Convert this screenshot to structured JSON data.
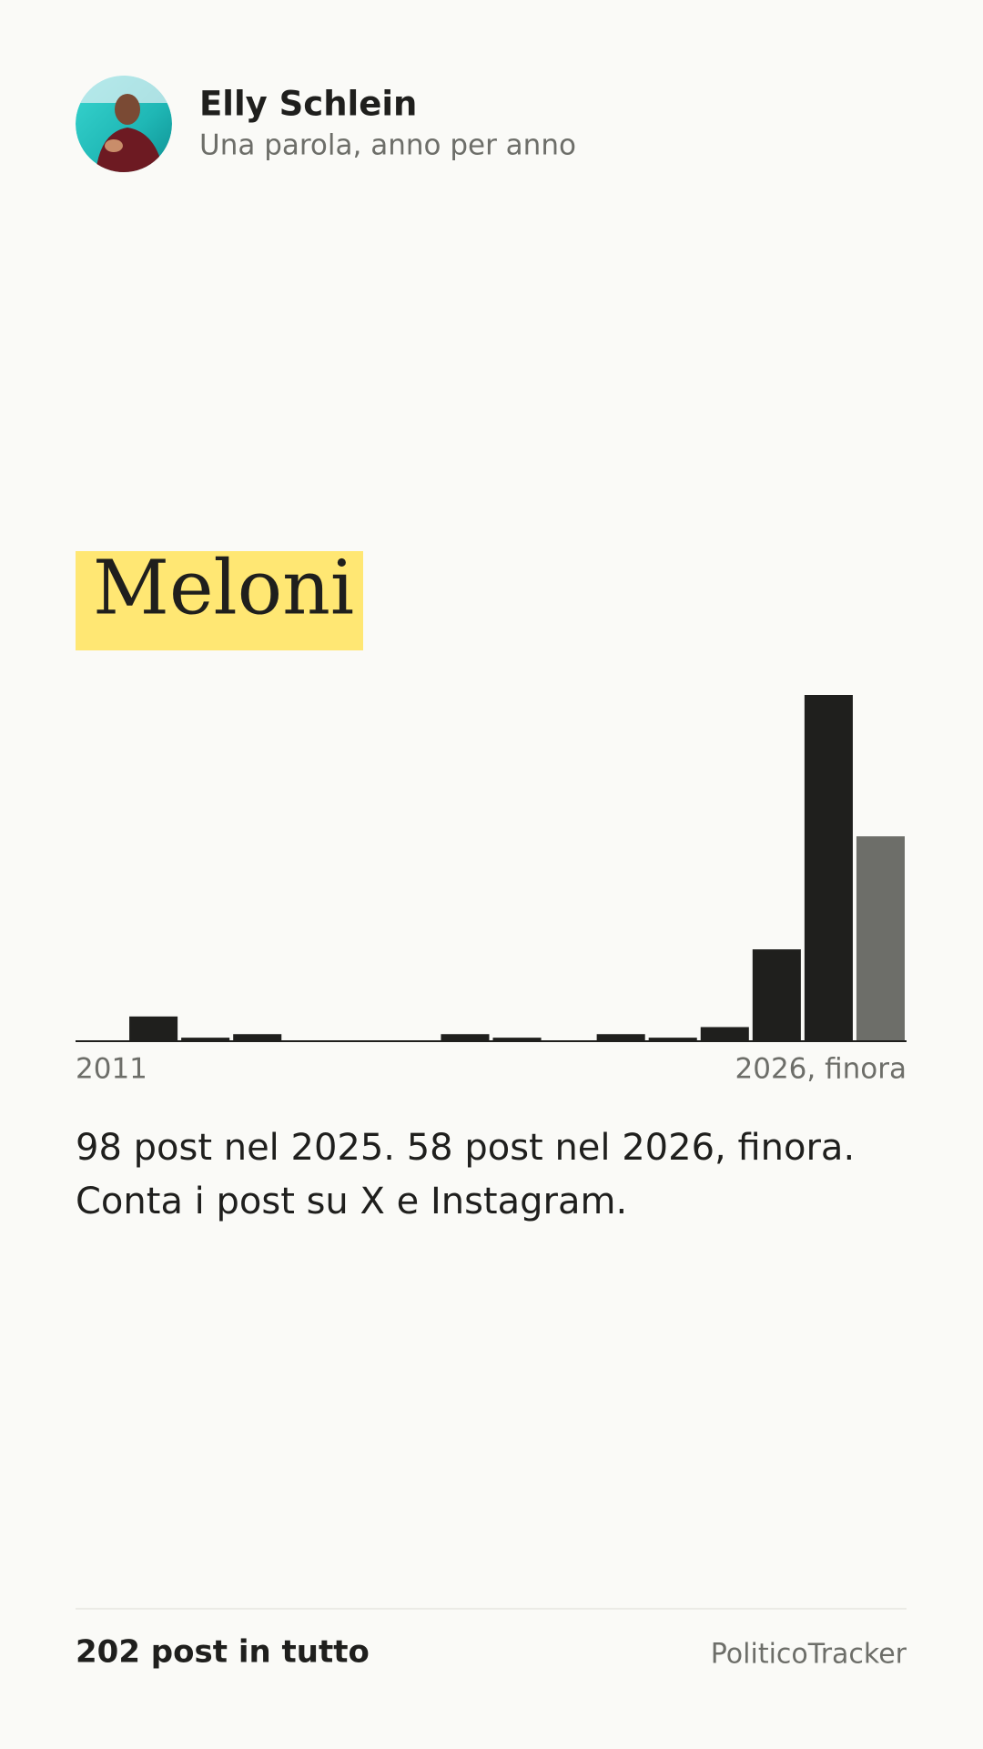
{
  "header": {
    "name": "Elly Schlein",
    "subtitle": "Una parola, anno per anno"
  },
  "word": "Meloni",
  "chart_data": {
    "type": "bar",
    "categories": [
      "2011",
      null,
      null,
      null,
      null,
      null,
      null,
      null,
      null,
      null,
      null,
      null,
      null,
      null,
      null,
      "2026, finora"
    ],
    "values": [
      0,
      7,
      1,
      2,
      0,
      0,
      0,
      2,
      1,
      0,
      2,
      1,
      4,
      26,
      98,
      58
    ],
    "colors": [
      "#1f1f1d",
      "#1f1f1d",
      "#1f1f1d",
      "#1f1f1d",
      "#1f1f1d",
      "#1f1f1d",
      "#1f1f1d",
      "#1f1f1d",
      "#1f1f1d",
      "#1f1f1d",
      "#1f1f1d",
      "#1f1f1d",
      "#1f1f1d",
      "#1f1f1d",
      "#1f1f1d",
      "#6d6e69"
    ]
  },
  "summary": [
    "98 post nel 2025. 58 post nel 2026, finora.",
    "Conta i post su X e Instagram."
  ],
  "footer": {
    "total": "202 post in tutto",
    "brand": "PoliticoTracker"
  }
}
